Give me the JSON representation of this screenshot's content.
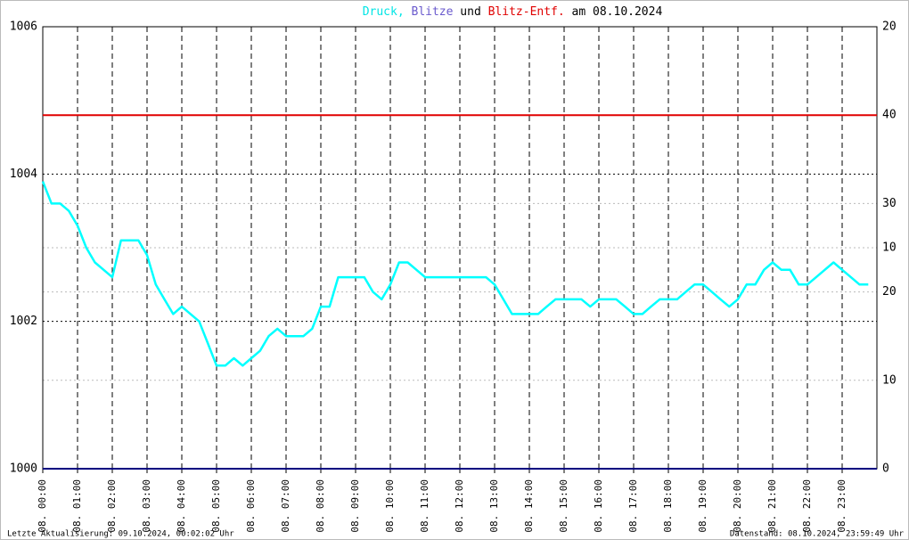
{
  "chart_data": {
    "type": "line",
    "title_parts": [
      {
        "text": "Druck,",
        "color": "#00e5e5"
      },
      {
        "text": "Blitze",
        "color": "#6a5acd"
      },
      {
        "text": "und",
        "color": "#000000"
      },
      {
        "text": "Blitz-Entf.",
        "color": "#e00000"
      },
      {
        "text": "am 08.10.2024",
        "color": "#000000"
      }
    ],
    "footer_left": "Letzte Aktualisierung: 09.10.2024, 00:02:02 Uhr",
    "footer_right": "Datenstand: 08.10.2024, 23:59:49 Uhr",
    "xlim": [
      0,
      24
    ],
    "xticks": [
      {
        "value": 0,
        "label": "08. 00:00"
      },
      {
        "value": 1,
        "label": "08. 01:00"
      },
      {
        "value": 2,
        "label": "08. 02:00"
      },
      {
        "value": 3,
        "label": "08. 03:00"
      },
      {
        "value": 4,
        "label": "08. 04:00"
      },
      {
        "value": 5,
        "label": "08. 05:00"
      },
      {
        "value": 6,
        "label": "08. 06:00"
      },
      {
        "value": 7,
        "label": "08. 07:00"
      },
      {
        "value": 8,
        "label": "08. 08:00"
      },
      {
        "value": 9,
        "label": "08. 09:00"
      },
      {
        "value": 10,
        "label": "08. 10:00"
      },
      {
        "value": 11,
        "label": "08. 11:00"
      },
      {
        "value": 12,
        "label": "08. 12:00"
      },
      {
        "value": 13,
        "label": "08. 13:00"
      },
      {
        "value": 14,
        "label": "08. 14:00"
      },
      {
        "value": 15,
        "label": "08. 15:00"
      },
      {
        "value": 16,
        "label": "08. 16:00"
      },
      {
        "value": 17,
        "label": "08. 17:00"
      },
      {
        "value": 18,
        "label": "08. 18:00"
      },
      {
        "value": 19,
        "label": "08. 19:00"
      },
      {
        "value": 20,
        "label": "08. 20:00"
      },
      {
        "value": 21,
        "label": "08. 21:00"
      },
      {
        "value": 22,
        "label": "08. 22:00"
      },
      {
        "value": 23,
        "label": "08. 23:00"
      }
    ],
    "ylim": [
      1000,
      1006
    ],
    "yticks": [
      1000,
      1002,
      1004,
      1006
    ],
    "y2lim": [
      0,
      20
    ],
    "y2ticks": [
      0,
      10,
      20
    ],
    "y2color": "#000000",
    "y3lim": [
      0,
      50
    ],
    "y3ticks": [
      10,
      20,
      30,
      40
    ],
    "y3color": "#c00000",
    "grid": true,
    "x": [
      0,
      0.25,
      0.5,
      0.75,
      1,
      1.25,
      1.5,
      1.75,
      2,
      2.25,
      2.5,
      2.75,
      3,
      3.25,
      3.5,
      3.75,
      4,
      4.25,
      4.5,
      4.75,
      5,
      5.25,
      5.5,
      5.75,
      6,
      6.25,
      6.5,
      6.75,
      7,
      7.25,
      7.5,
      7.75,
      8,
      8.25,
      8.5,
      8.75,
      9,
      9.25,
      9.5,
      9.75,
      10,
      10.25,
      10.5,
      10.75,
      11,
      11.25,
      11.5,
      11.75,
      12,
      12.25,
      12.5,
      12.75,
      13,
      13.25,
      13.5,
      13.75,
      14,
      14.25,
      14.5,
      14.75,
      15,
      15.25,
      15.5,
      15.75,
      16,
      16.25,
      16.5,
      16.75,
      17,
      17.25,
      17.5,
      17.75,
      18,
      18.25,
      18.5,
      18.75,
      19,
      19.25,
      19.5,
      19.75,
      20,
      20.25,
      20.5,
      20.75,
      21,
      21.25,
      21.5,
      21.75,
      22,
      22.25,
      22.5,
      22.75,
      23,
      23.25,
      23.5,
      23.75
    ],
    "series": [
      {
        "name": "Druck",
        "color": "#00ffff",
        "values": [
          1003.9,
          1003.6,
          1003.6,
          1003.5,
          1003.3,
          1003.0,
          1002.8,
          1002.7,
          1002.6,
          1003.1,
          1003.1,
          1003.1,
          1002.9,
          1002.5,
          1002.3,
          1002.1,
          1002.2,
          1002.1,
          1002.0,
          1001.7,
          1001.4,
          1001.4,
          1001.5,
          1001.4,
          1001.5,
          1001.6,
          1001.8,
          1001.9,
          1001.8,
          1001.8,
          1001.8,
          1001.9,
          1002.2,
          1002.2,
          1002.6,
          1002.6,
          1002.6,
          1002.6,
          1002.4,
          1002.3,
          1002.5,
          1002.8,
          1002.8,
          1002.7,
          1002.6,
          1002.6,
          1002.6,
          1002.6,
          1002.6,
          1002.6,
          1002.6,
          1002.6,
          1002.5,
          1002.3,
          1002.1,
          1002.1,
          1002.1,
          1002.1,
          1002.2,
          1002.3,
          1002.3,
          1002.3,
          1002.3,
          1002.2,
          1002.3,
          1002.3,
          1002.3,
          1002.2,
          1002.1,
          1002.1,
          1002.2,
          1002.3,
          1002.3,
          1002.3,
          1002.4,
          1002.5,
          1002.5,
          1002.4,
          1002.3,
          1002.2,
          1002.3,
          1002.5,
          1002.5,
          1002.7,
          1002.8,
          1002.7,
          1002.7,
          1002.5,
          1002.5,
          1002.6,
          1002.7,
          1002.8,
          1002.7,
          1002.6,
          1002.5,
          1002.5
        ]
      }
    ],
    "reference_lines": [
      {
        "axis": "y3",
        "value": 40,
        "color": "#e00000"
      },
      {
        "axis": "y2",
        "value": 0,
        "color": "#000080"
      }
    ]
  }
}
